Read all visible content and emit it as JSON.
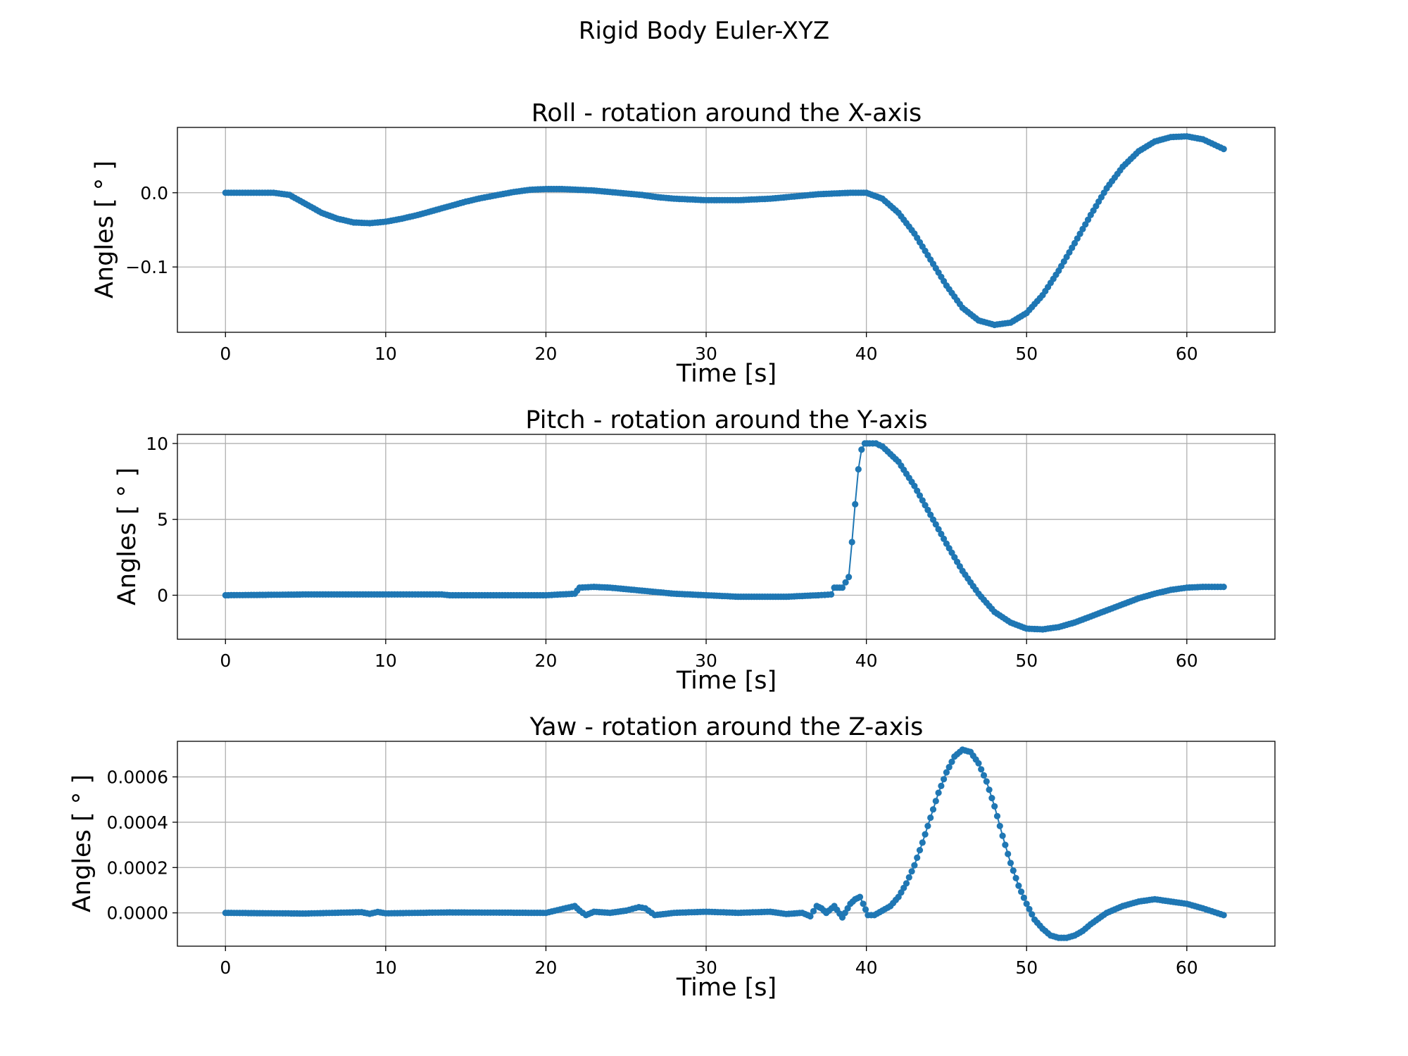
{
  "figure": {
    "title": "Rigid Body Euler-XYZ",
    "line_color": "#1f77b4"
  },
  "chart_data": [
    {
      "type": "scatter",
      "title": "Roll - rotation around the X-axis",
      "xlabel": "Time [s]",
      "ylabel": "Angles [ ° ]",
      "xlim": [
        -3,
        65.5
      ],
      "ylim": [
        -0.188,
        0.088
      ],
      "xticks": [
        0,
        10,
        20,
        30,
        40,
        50,
        60
      ],
      "yticks": [
        0.0,
        -0.1
      ],
      "ytick_labels": [
        "0.0",
        "−0.1"
      ],
      "grid": true,
      "series": [
        {
          "x": [
            0,
            3,
            4,
            5,
            6,
            7,
            8,
            9,
            10,
            11,
            12,
            13,
            14,
            15,
            16,
            17,
            18,
            19,
            20,
            21,
            22,
            23,
            24,
            25,
            26,
            27,
            28,
            29,
            30,
            31,
            32,
            33,
            34,
            35,
            36,
            37,
            38,
            39,
            40,
            41,
            42,
            43,
            44,
            45,
            46,
            47,
            48,
            49,
            50,
            51,
            52,
            53,
            54,
            55,
            56,
            57,
            58,
            59,
            60,
            61,
            62.3
          ],
          "y": [
            0,
            0,
            -0.003,
            -0.015,
            -0.027,
            -0.035,
            -0.04,
            -0.041,
            -0.039,
            -0.035,
            -0.03,
            -0.024,
            -0.018,
            -0.012,
            -0.007,
            -0.003,
            0.001,
            0.004,
            0.005,
            0.005,
            0.004,
            0.003,
            0.001,
            -0.001,
            -0.003,
            -0.006,
            -0.008,
            -0.009,
            -0.01,
            -0.01,
            -0.01,
            -0.009,
            -0.008,
            -0.006,
            -0.004,
            -0.002,
            -0.001,
            0.0,
            0.0,
            -0.008,
            -0.027,
            -0.055,
            -0.09,
            -0.125,
            -0.155,
            -0.172,
            -0.178,
            -0.175,
            -0.162,
            -0.138,
            -0.105,
            -0.068,
            -0.03,
            0.006,
            0.035,
            0.056,
            0.069,
            0.075,
            0.076,
            0.072,
            0.059
          ]
        }
      ]
    },
    {
      "type": "scatter",
      "title": "Pitch - rotation around the Y-axis",
      "xlabel": "Time [s]",
      "ylabel": "Angles [ ° ]",
      "xlim": [
        -3,
        65.5
      ],
      "ylim": [
        -2.9,
        10.6
      ],
      "xticks": [
        0,
        10,
        20,
        30,
        40,
        50,
        60
      ],
      "yticks": [
        10,
        5,
        0
      ],
      "ytick_labels": [
        "10",
        "5",
        "0"
      ],
      "grid": true,
      "series": [
        {
          "x": [
            0,
            5,
            10,
            13.5,
            14,
            20,
            21.8,
            22.1,
            23,
            24,
            25,
            26,
            27,
            28,
            29,
            30,
            31,
            32,
            33,
            34,
            35,
            36,
            37,
            37.8,
            38,
            38.5,
            38.9,
            39.1,
            39.3,
            39.5,
            39.7,
            39.9,
            40.2,
            40.6,
            41,
            42,
            43,
            44,
            45,
            46,
            47,
            48,
            49,
            50,
            51,
            52,
            53,
            54,
            55,
            56,
            57,
            58,
            59,
            60,
            61,
            62.3
          ],
          "y": [
            0,
            0.05,
            0.05,
            0.05,
            0,
            0,
            0.1,
            0.5,
            0.55,
            0.5,
            0.4,
            0.3,
            0.2,
            0.1,
            0.05,
            0,
            -0.05,
            -0.1,
            -0.1,
            -0.1,
            -0.1,
            -0.05,
            0,
            0.05,
            0.5,
            0.5,
            1.2,
            3.5,
            6.0,
            8.3,
            9.6,
            10.0,
            10.0,
            10.0,
            9.8,
            8.8,
            7.2,
            5.3,
            3.4,
            1.6,
            0.1,
            -1.1,
            -1.8,
            -2.2,
            -2.25,
            -2.1,
            -1.8,
            -1.4,
            -1.0,
            -0.6,
            -0.2,
            0.1,
            0.35,
            0.5,
            0.55,
            0.55
          ]
        }
      ]
    },
    {
      "type": "scatter",
      "title": "Yaw - rotation around the Z-axis",
      "xlabel": "Time [s]",
      "ylabel": "Angles [ ° ]",
      "xlim": [
        -3,
        65.5
      ],
      "ylim": [
        -0.000147,
        0.000757
      ],
      "xticks": [
        0,
        10,
        20,
        30,
        40,
        50,
        60
      ],
      "yticks": [
        0.0006,
        0.0004,
        0.0002,
        0.0
      ],
      "ytick_labels": [
        "0.0006",
        "0.0004",
        "0.0002",
        "0.0000"
      ],
      "grid": true,
      "series": [
        {
          "x": [
            0,
            5,
            8.5,
            9,
            9.5,
            10,
            14,
            20,
            21.8,
            22.1,
            22.5,
            23,
            24,
            25,
            25.8,
            26.2,
            26.8,
            28,
            30,
            32,
            34,
            35,
            36,
            36.5,
            36.9,
            37.2,
            37.5,
            38,
            38.5,
            39,
            39.3,
            39.6,
            39.8,
            40.1,
            40.5,
            41,
            41.5,
            42,
            42.5,
            43,
            43.5,
            44,
            44.5,
            45,
            45.5,
            46,
            46.5,
            47,
            47.5,
            48,
            48.5,
            49,
            49.5,
            50,
            50.5,
            51,
            51.5,
            52,
            52.5,
            53,
            53.5,
            54,
            55,
            56,
            57,
            58,
            59,
            60,
            61,
            62.3
          ],
          "y": [
            0,
            -3e-06,
            3e-06,
            -4e-06,
            4e-06,
            -2e-06,
            2e-06,
            0,
            3e-05,
            1e-05,
            -1e-05,
            5e-06,
            0,
            1e-05,
            2.5e-05,
            2e-05,
            -1e-05,
            0,
            5e-06,
            0,
            5e-06,
            -5e-06,
            0,
            -1.5e-05,
            3e-05,
            2e-05,
            0,
            3e-05,
            -2e-05,
            4e-05,
            6e-05,
            7e-05,
            4e-05,
            -1e-05,
            -1e-05,
            1e-05,
            3e-05,
            7e-05,
            0.00013,
            0.00021,
            0.00031,
            0.00042,
            0.00053,
            0.00062,
            0.00069,
            0.00072,
            0.00071,
            0.00066,
            0.00058,
            0.00047,
            0.00034,
            0.00022,
            0.00012,
            4e-05,
            -3e-05,
            -7e-05,
            -0.0001,
            -0.00011,
            -0.00011,
            -0.0001,
            -8e-05,
            -5e-05,
            0,
            3e-05,
            5e-05,
            6e-05,
            5e-05,
            4e-05,
            2e-05,
            -1e-05
          ]
        }
      ]
    }
  ]
}
